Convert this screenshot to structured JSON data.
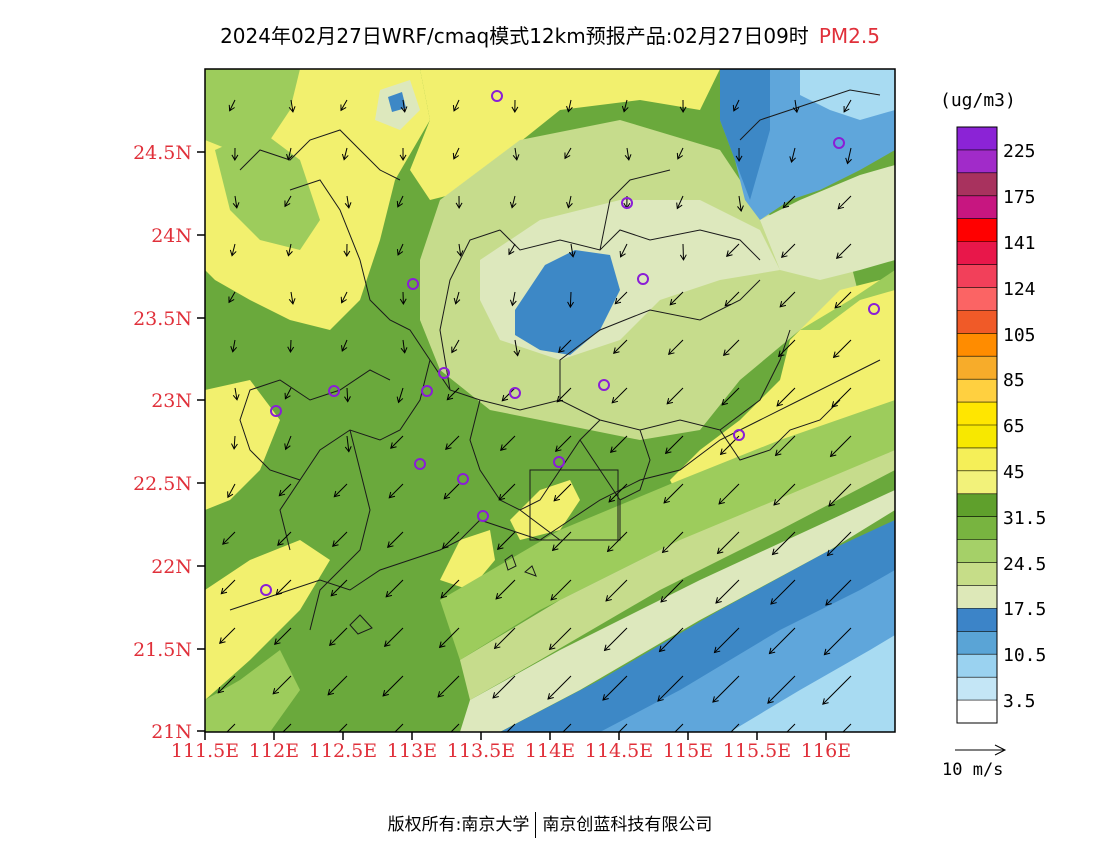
{
  "title": {
    "text": "2024年02月27日WRF/cmaq模式12km预报产品:02月27日09时",
    "pollutant": "PM2.5"
  },
  "axes": {
    "lat_labels": [
      "24.5N",
      "24N",
      "23.5N",
      "23N",
      "22.5N",
      "22N",
      "21.5N",
      "21N"
    ],
    "lon_labels": [
      "111.5E",
      "112E",
      "112.5E",
      "113E",
      "113.5E",
      "114E",
      "114.5E",
      "115E",
      "115.5E",
      "116E"
    ]
  },
  "colorbar": {
    "unit": "(ug/m3)",
    "labels": [
      "225",
      "175",
      "141",
      "124",
      "105",
      "85",
      "65",
      "45",
      "31.5",
      "24.5",
      "17.5",
      "10.5",
      "3.5"
    ],
    "colors_top_to_bottom": [
      "#8b23d6",
      "#a12bc9",
      "#a8325e",
      "#c71680",
      "#ff0000",
      "#e8174a",
      "#f2405a",
      "#fb6464",
      "#f05a28",
      "#ff8c00",
      "#f7ac2a",
      "#ffd040",
      "#ffe600",
      "#f7e800",
      "#f5ef58",
      "#f2f27a",
      "#5fa02c",
      "#78b440",
      "#a5d068",
      "#c6dd88",
      "#dde8b8",
      "#3c84c8",
      "#5aa4d6",
      "#9ad2f0",
      "#c4e6f6",
      "#ffffff"
    ]
  },
  "wind_reference": {
    "label": "10 m/s"
  },
  "legend_colors": {
    "blue_dark": "#3d88c6",
    "blue_mid": "#5fa6db",
    "blue_light": "#a8dbf2",
    "pale_green": "#dde8bd",
    "light_green": "#c6dc8c",
    "green": "#9dcc5c",
    "dark_green": "#6aa93c",
    "yellow": "#f2f06e",
    "yellow_bright": "#f7ea30"
  },
  "footer": {
    "left": "版权所有:南京大学",
    "right": "南京创蓝科技有限公司"
  }
}
